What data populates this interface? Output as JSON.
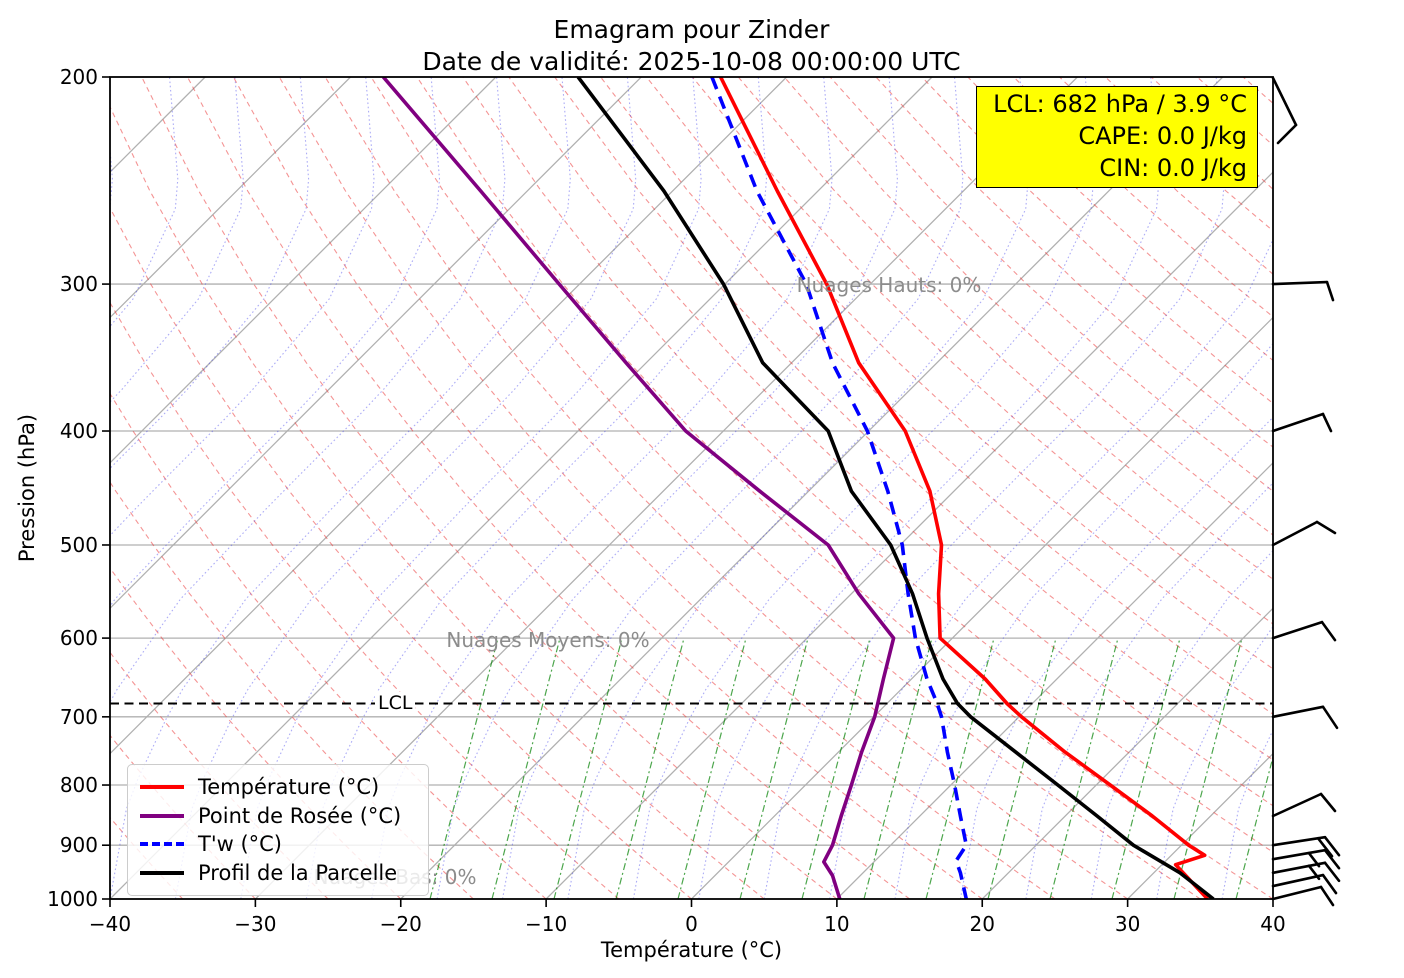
{
  "title": {
    "line1": "Emagram pour Zinder",
    "line2": "Date de validité: 2025-10-08 00:00:00 UTC"
  },
  "info_box": {
    "lcl_line": "LCL: 682 hPa / 3.9 °C",
    "cape_line": "CAPE: 0.0 J/kg",
    "cin_line": "CIN: 0.0 J/kg",
    "background": "#ffff00"
  },
  "legend": {
    "items": [
      {
        "label": "Température (°C)",
        "color": "#ff0000",
        "style": "solid"
      },
      {
        "label": "Point de Rosée (°C)",
        "color": "#800080",
        "style": "solid"
      },
      {
        "label": "T'w (°C)",
        "color": "#0000ff",
        "style": "dashed"
      },
      {
        "label": "Profil de la Parcelle",
        "color": "#000000",
        "style": "solid"
      }
    ]
  },
  "annotations": {
    "nuages_hauts": "Nuages Hauts: 0%",
    "nuages_moyens": "Nuages Moyens: 0%",
    "nuages_bas": "Nuages Bas: 0%",
    "lcl_label": "LCL"
  },
  "axes": {
    "x_label": "Température (°C)",
    "y_label": "Pression (hPa)",
    "x_ticks": [
      -40,
      -30,
      -20,
      -10,
      0,
      10,
      20,
      30,
      40
    ],
    "y_ticks": [
      200,
      300,
      400,
      500,
      600,
      700,
      800,
      900,
      1000
    ]
  },
  "chart_data": {
    "type": "line",
    "subtype": "emagram-skewT-sounding",
    "title": "Emagram pour Zinder",
    "subtitle": "Date de validité: 2025-10-08 00:00:00 UTC",
    "xlabel": "Température (°C)",
    "ylabel": "Pression (hPa)",
    "x_axis": {
      "min": -40,
      "max": 40,
      "unit": "°C"
    },
    "y_axis": {
      "min": 1000,
      "max": 200,
      "unit": "hPa",
      "scale": "log"
    },
    "skew_deg_C_per_decade": 80.9,
    "note": "Series values are the plotted skewed x-axis positions (°C on the bottom axis) at each pressure level (hPa).",
    "lcl": {
      "pressure_hPa": 682,
      "temperature_C": 3.9
    },
    "cape_J_per_kg": 0.0,
    "cin_J_per_kg": 0.0,
    "cloud_cover_percent": {
      "hauts": 0,
      "moyens": 0,
      "bas": 0
    },
    "series": [
      {
        "name": "Température (°C)",
        "color": "#ff0000",
        "style": "solid",
        "points": [
          [
            200,
            2.0
          ],
          [
            250,
            5.9
          ],
          [
            300,
            9.3
          ],
          [
            350,
            11.5
          ],
          [
            400,
            14.7
          ],
          [
            450,
            16.4
          ],
          [
            500,
            17.2
          ],
          [
            550,
            17.0
          ],
          [
            600,
            17.1
          ],
          [
            650,
            20.2
          ],
          [
            682,
            21.7
          ],
          [
            700,
            22.7
          ],
          [
            750,
            25.7
          ],
          [
            800,
            28.8
          ],
          [
            850,
            31.7
          ],
          [
            900,
            34.2
          ],
          [
            918,
            35.3
          ],
          [
            935,
            33.3
          ],
          [
            1000,
            35.5
          ]
        ]
      },
      {
        "name": "Point de Rosée (°C)",
        "color": "#800080",
        "style": "solid",
        "points": [
          [
            200,
            -21.2
          ],
          [
            250,
            -14.5
          ],
          [
            300,
            -9.1
          ],
          [
            350,
            -4.5
          ],
          [
            400,
            -0.4
          ],
          [
            450,
            4.7
          ],
          [
            500,
            9.4
          ],
          [
            550,
            11.5
          ],
          [
            600,
            13.9
          ],
          [
            650,
            13.2
          ],
          [
            700,
            12.6
          ],
          [
            750,
            11.7
          ],
          [
            800,
            11.0
          ],
          [
            850,
            10.3
          ],
          [
            900,
            9.7
          ],
          [
            930,
            9.1
          ],
          [
            955,
            9.7
          ],
          [
            1000,
            10.2
          ]
        ]
      },
      {
        "name": "T'w (°C)",
        "color": "#0000ff",
        "style": "dashed",
        "points": [
          [
            200,
            1.4
          ],
          [
            250,
            4.5
          ],
          [
            300,
            7.9
          ],
          [
            350,
            9.7
          ],
          [
            400,
            12.1
          ],
          [
            450,
            13.5
          ],
          [
            500,
            14.5
          ],
          [
            550,
            14.9
          ],
          [
            600,
            15.4
          ],
          [
            650,
            16.2
          ],
          [
            682,
            16.9
          ],
          [
            700,
            17.2
          ],
          [
            750,
            17.6
          ],
          [
            800,
            18.1
          ],
          [
            850,
            18.5
          ],
          [
            900,
            18.9
          ],
          [
            928,
            18.2
          ],
          [
            950,
            18.5
          ],
          [
            1000,
            18.9
          ]
        ]
      },
      {
        "name": "Profil de la Parcelle",
        "color": "#000000",
        "style": "solid",
        "points": [
          [
            200,
            -7.8
          ],
          [
            250,
            -1.9
          ],
          [
            300,
            2.2
          ],
          [
            350,
            4.9
          ],
          [
            400,
            9.4
          ],
          [
            450,
            11.0
          ],
          [
            500,
            13.7
          ],
          [
            550,
            15.2
          ],
          [
            600,
            16.2
          ],
          [
            650,
            17.3
          ],
          [
            682,
            18.3
          ],
          [
            700,
            19.2
          ],
          [
            750,
            22.3
          ],
          [
            800,
            25.2
          ],
          [
            850,
            27.9
          ],
          [
            900,
            30.4
          ],
          [
            950,
            33.6
          ],
          [
            1000,
            35.9
          ]
        ]
      }
    ],
    "wind_barbs": [
      {
        "pressure_hPa": 200,
        "segments": [
          [
            [
              0,
              1
            ],
            [
              23,
              48
            ]
          ],
          [
            [
              23,
              48
            ],
            [
              5,
              66
            ]
          ]
        ]
      },
      {
        "pressure_hPa": 300,
        "segments": [
          [
            [
              0,
              0
            ],
            [
              54,
              -2
            ]
          ],
          [
            [
              54,
              -2
            ],
            [
              60,
              16
            ]
          ]
        ]
      },
      {
        "pressure_hPa": 400,
        "segments": [
          [
            [
              0,
              0
            ],
            [
              50,
              -17
            ]
          ],
          [
            [
              50,
              -17
            ],
            [
              58,
              0
            ]
          ]
        ]
      },
      {
        "pressure_hPa": 500,
        "segments": [
          [
            [
              0,
              0
            ],
            [
              44,
              -23
            ]
          ],
          [
            [
              44,
              -23
            ],
            [
              62,
              -12
            ]
          ]
        ]
      },
      {
        "pressure_hPa": 600,
        "segments": [
          [
            [
              0,
              0
            ],
            [
              49,
              -16
            ]
          ],
          [
            [
              49,
              -16
            ],
            [
              62,
              2
            ]
          ]
        ]
      },
      {
        "pressure_hPa": 700,
        "segments": [
          [
            [
              0,
              0
            ],
            [
              50,
              -10
            ]
          ],
          [
            [
              50,
              -10
            ],
            [
              64,
              11
            ]
          ]
        ]
      },
      {
        "pressure_hPa": 850,
        "segments": [
          [
            [
              0,
              0
            ],
            [
              48,
              -22
            ]
          ],
          [
            [
              48,
              -22
            ],
            [
              62,
              -5
            ]
          ]
        ]
      },
      {
        "pressure_hPa": 900,
        "segments": [
          [
            [
              0,
              0
            ],
            [
              52,
              -8
            ]
          ],
          [
            [
              52,
              -8
            ],
            [
              66,
              10
            ]
          ],
          [
            [
              45,
              -7
            ],
            [
              59,
              11
            ]
          ]
        ]
      },
      {
        "pressure_hPa": 925,
        "segments": [
          [
            [
              0,
              0
            ],
            [
              52,
              -9
            ]
          ],
          [
            [
              52,
              -9
            ],
            [
              66,
              9
            ]
          ],
          [
            [
              36,
              -6
            ],
            [
              46,
              7
            ]
          ]
        ]
      },
      {
        "pressure_hPa": 950,
        "segments": [
          [
            [
              0,
              0
            ],
            [
              52,
              -10
            ]
          ],
          [
            [
              52,
              -10
            ],
            [
              66,
              8
            ]
          ],
          [
            [
              36,
              -7
            ],
            [
              46,
              6
            ]
          ]
        ]
      },
      {
        "pressure_hPa": 975,
        "segments": [
          [
            [
              0,
              0
            ],
            [
              50,
              -11
            ]
          ],
          [
            [
              50,
              -11
            ],
            [
              63,
              7
            ]
          ]
        ]
      },
      {
        "pressure_hPa": 1000,
        "segments": [
          [
            [
              0,
              0
            ],
            [
              48,
              -12
            ]
          ],
          [
            [
              48,
              -12
            ],
            [
              60,
              6
            ]
          ]
        ]
      }
    ]
  }
}
